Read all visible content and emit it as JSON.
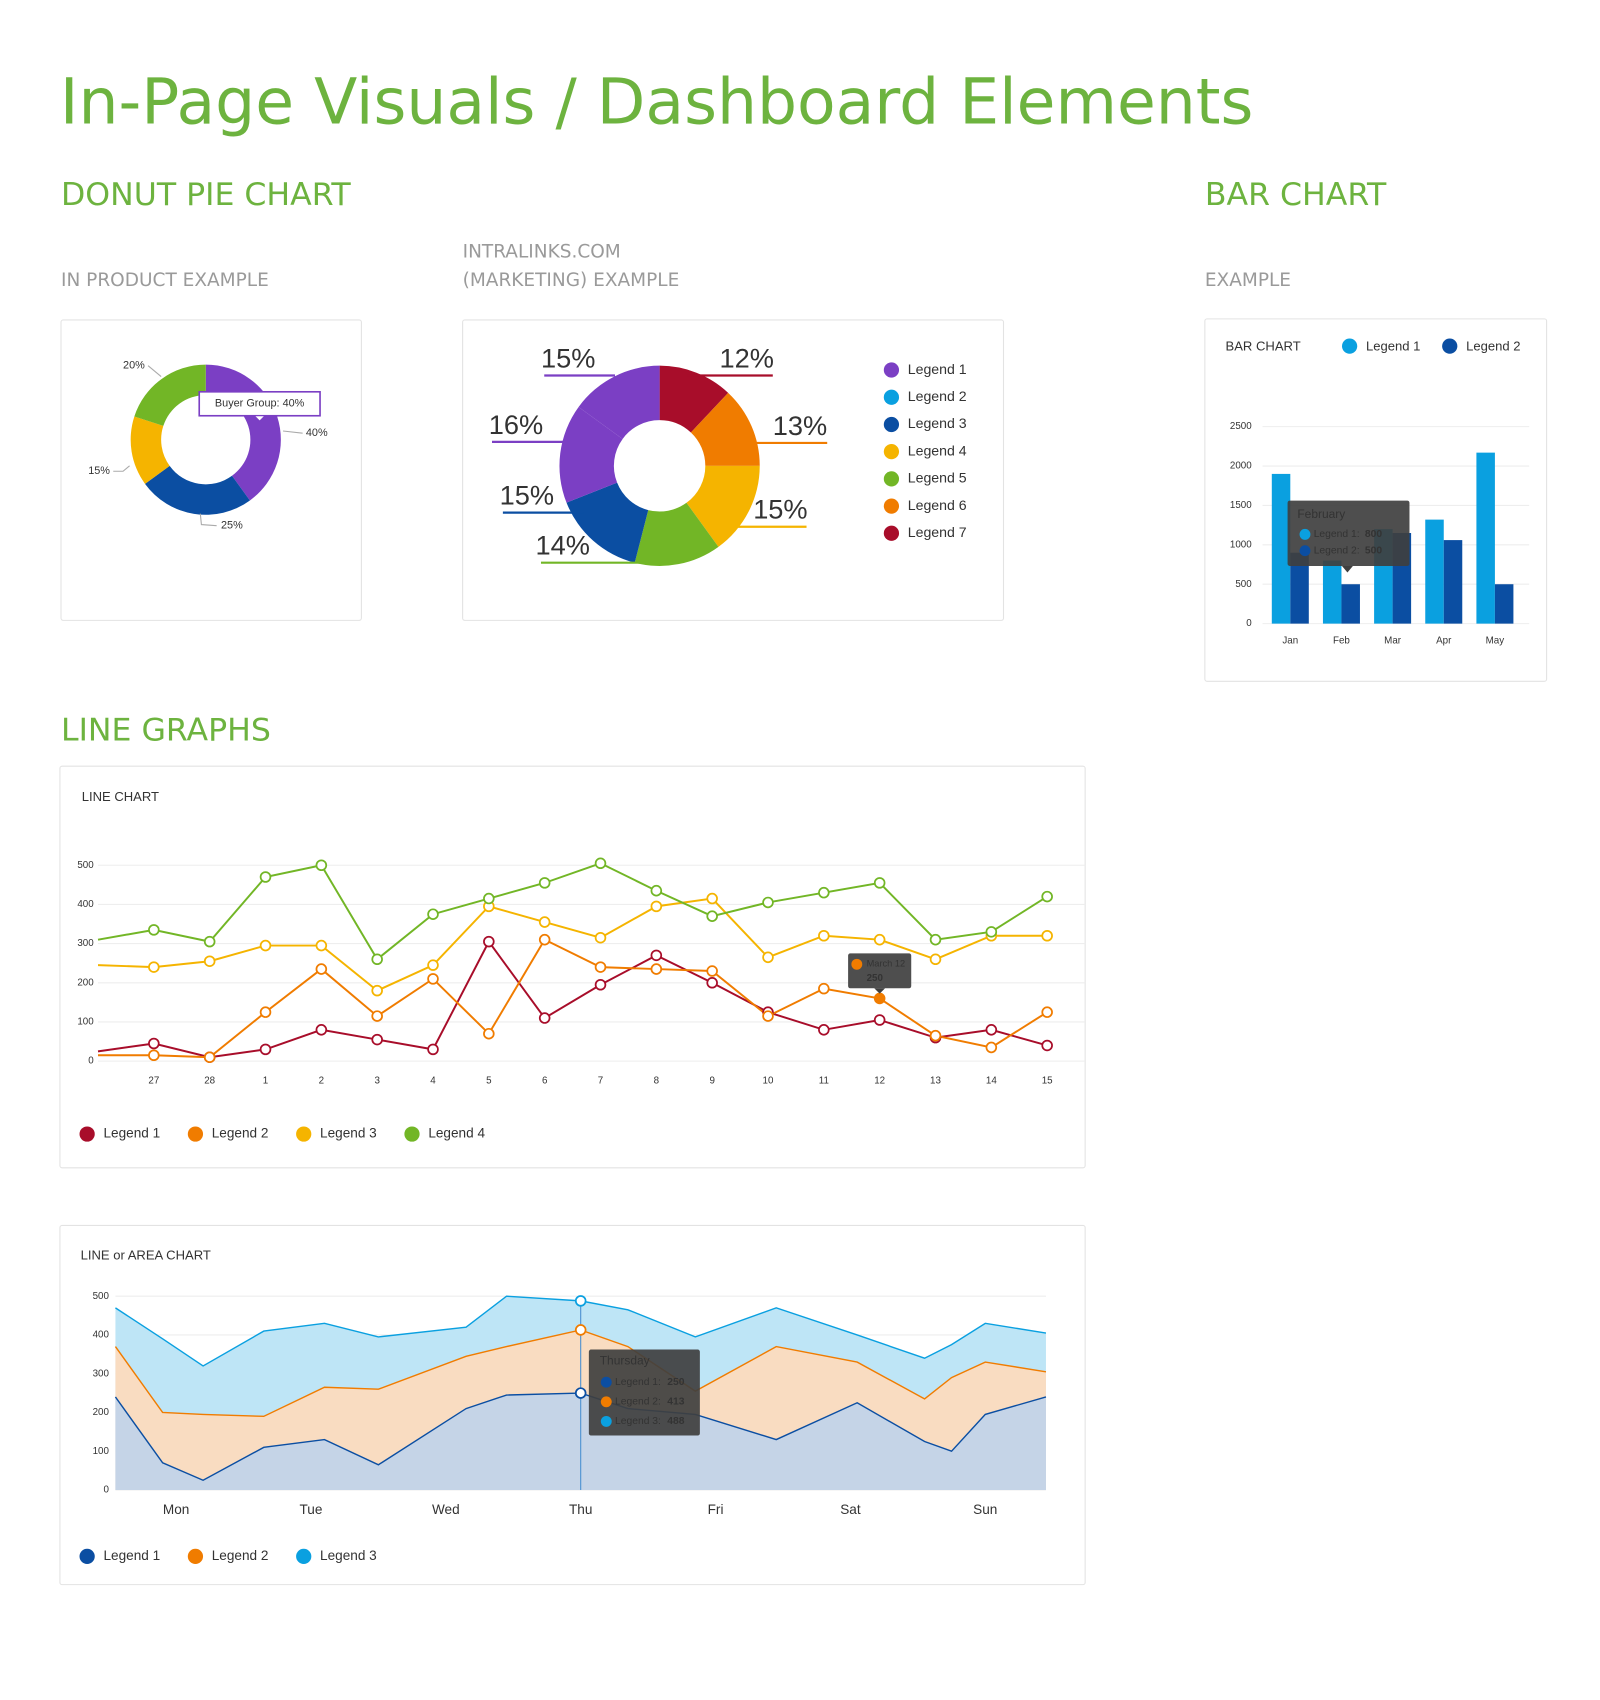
{
  "title": "In-Page Visuals / Dashboard Elements",
  "sections": [
    "DONUT PIE CHART",
    "BAR CHART",
    "LINE GRAPHS"
  ],
  "subtitles": [
    "IN PRODUCT EXAMPLE",
    "INTRALINKS.COM",
    "(MARKETING) EXAMPLE",
    "EXAMPLE"
  ],
  "chart_data": [
    {
      "type": "donut",
      "values": [
        40,
        25,
        15,
        20
      ],
      "value_labels": [
        "40%",
        "25%",
        "15%",
        "20%"
      ],
      "colors": [
        "#7b3fc4",
        "#0b4ea2",
        "#f5b400",
        "#72b626"
      ],
      "tooltip": "Buyer Group: 40%"
    },
    {
      "type": "donut",
      "values": [
        12,
        13,
        15,
        14,
        15,
        16,
        15
      ],
      "value_labels": [
        "12%",
        "13%",
        "15%",
        "14%",
        "15%",
        "16%",
        "15%"
      ],
      "colors": [
        "#a80d2a",
        "#f07c00",
        "#f5b400",
        "#72b626",
        "#0b4ea2",
        "#7b3fc4",
        "#7b3fc4"
      ],
      "legend": [
        {
          "name": "Legend 1",
          "color": "#7b3fc4"
        },
        {
          "name": "Legend 2",
          "color": "#0aa0e0"
        },
        {
          "name": "Legend 3",
          "color": "#0b4ea2"
        },
        {
          "name": "Legend 4",
          "color": "#f5b400"
        },
        {
          "name": "Legend 5",
          "color": "#72b626"
        },
        {
          "name": "Legend 6",
          "color": "#f07c00"
        },
        {
          "name": "Legend 7",
          "color": "#a80d2a"
        }
      ]
    },
    {
      "type": "bar",
      "title": "BAR CHART",
      "categories": [
        "Jan",
        "Feb",
        "Mar",
        "Apr",
        "May"
      ],
      "series": [
        {
          "name": "Legend 1",
          "color": "#0aa0e0",
          "values": [
            1900,
            800,
            1200,
            1320,
            2170
          ]
        },
        {
          "name": "Legend 2",
          "color": "#0b4ea2",
          "values": [
            900,
            500,
            1150,
            1060,
            500
          ]
        }
      ],
      "ylim": [
        0,
        2500
      ],
      "yticks": [
        0,
        500,
        1000,
        1500,
        2000,
        2500
      ],
      "grid": true,
      "tooltip": {
        "title": "February",
        "labels": [
          "Legend 1:",
          "Legend 2:"
        ]
      }
    },
    {
      "type": "line",
      "title": "LINE CHART",
      "categories": [
        null,
        27,
        28,
        1,
        2,
        3,
        4,
        5,
        6,
        7,
        8,
        9,
        10,
        11,
        12,
        13,
        14,
        15
      ],
      "series": [
        {
          "name": "Legend 1",
          "color": "#a80d2a",
          "values": [
            25,
            45,
            10,
            30,
            80,
            55,
            30,
            305,
            110,
            195,
            270,
            200,
            125,
            80,
            105,
            60,
            80,
            40
          ]
        },
        {
          "name": "Legend 2",
          "color": "#f07c00",
          "values": [
            15,
            15,
            10,
            125,
            235,
            115,
            210,
            70,
            310,
            240,
            235,
            230,
            115,
            185,
            160,
            65,
            35,
            125
          ]
        },
        {
          "name": "Legend 3",
          "color": "#f5b400",
          "values": [
            245,
            240,
            255,
            295,
            295,
            180,
            245,
            395,
            355,
            315,
            395,
            415,
            265,
            320,
            310,
            260,
            320,
            320
          ]
        },
        {
          "name": "Legend 4",
          "color": "#72b626",
          "values": [
            310,
            335,
            305,
            470,
            500,
            260,
            375,
            415,
            455,
            505,
            435,
            370,
            405,
            430,
            455,
            310,
            330,
            420
          ]
        }
      ],
      "ylim": [
        0,
        500
      ],
      "yticks": [
        0,
        100,
        200,
        300,
        400,
        500
      ],
      "grid": true,
      "tooltip": {
        "title": "March 12",
        "text": "250"
      }
    },
    {
      "type": "area",
      "title": "LINE or AREA CHART",
      "x": [
        -0.45,
        -0.1,
        0.2,
        0.65,
        1.1,
        1.5,
        2.15,
        2.45,
        3,
        3.35,
        3.85,
        4.45,
        5.05,
        5.55,
        5.75,
        6,
        6.45
      ],
      "series": [
        {
          "name": "Legend 1",
          "color": "#0b4ea2",
          "fill": "#c5d4e7",
          "values": [
            240,
            70,
            25,
            110,
            130,
            65,
            210,
            245,
            250,
            210,
            195,
            130,
            225,
            125,
            100,
            195,
            240
          ]
        },
        {
          "name": "Legend 2",
          "color": "#f07c00",
          "fill": "#f9dcc1",
          "values": [
            370,
            200,
            195,
            190,
            265,
            260,
            345,
            370,
            413,
            370,
            255,
            370,
            330,
            235,
            290,
            330,
            305
          ]
        },
        {
          "name": "Legend 3",
          "color": "#0aa0e0",
          "fill": "#bee5f6",
          "values": [
            470,
            390,
            320,
            410,
            430,
            395,
            420,
            500,
            488,
            465,
            395,
            470,
            400,
            340,
            375,
            430,
            405
          ]
        }
      ],
      "xlim": [
        -0.45,
        6.45
      ],
      "xticks": [
        {
          "value": 0,
          "label": "Mon"
        },
        {
          "value": 1,
          "label": "Tue"
        },
        {
          "value": 2,
          "label": "Wed"
        },
        {
          "value": 3,
          "label": "Thu"
        },
        {
          "value": 4,
          "label": "Fri"
        },
        {
          "value": 5,
          "label": "Sat"
        },
        {
          "value": 6,
          "label": "Sun"
        }
      ],
      "ylim": [
        0,
        500
      ],
      "yticks": [
        0,
        100,
        200,
        300,
        400,
        500
      ],
      "grid": true,
      "tooltip": {
        "title": "Thursday",
        "labels": [
          "Legend 1:",
          "Legend 2:",
          "Legend 3:"
        ]
      }
    }
  ]
}
